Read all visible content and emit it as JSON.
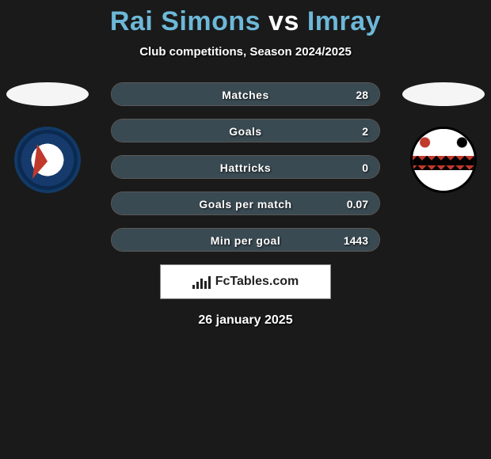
{
  "title": {
    "player1": "Rai Simons",
    "vs": "vs",
    "player2": "Imray"
  },
  "subtitle": "Club competitions, Season 2024/2025",
  "brand": "FcTables.com",
  "date": "26 january 2025",
  "colors": {
    "accent": "#6db8d8",
    "fill": "#3a4a52",
    "background": "#1a1a1a"
  },
  "stats": [
    {
      "label": "Matches",
      "value": "28",
      "fill_pct": 100
    },
    {
      "label": "Goals",
      "value": "2",
      "fill_pct": 100
    },
    {
      "label": "Hattricks",
      "value": "0",
      "fill_pct": 100
    },
    {
      "label": "Goals per match",
      "value": "0.07",
      "fill_pct": 100
    },
    {
      "label": "Min per goal",
      "value": "1443",
      "fill_pct": 100
    }
  ]
}
